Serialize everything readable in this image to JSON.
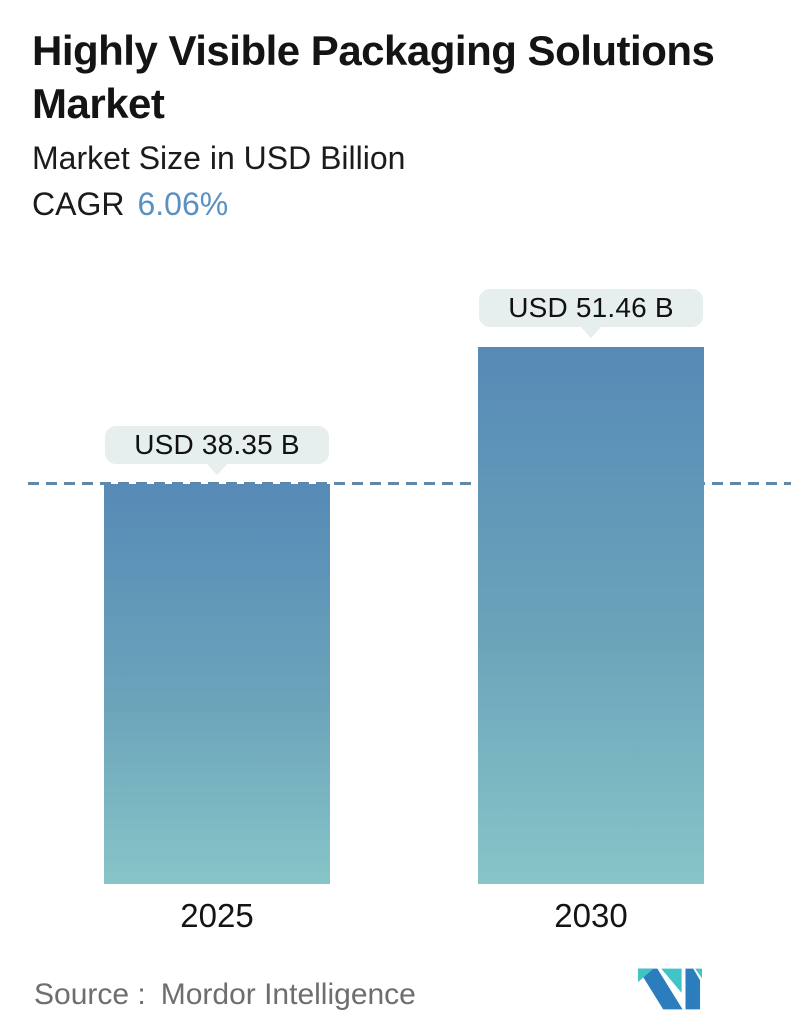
{
  "header": {
    "title_lines": [
      "Highly Visible Packaging Solutions",
      "Market"
    ],
    "subtitle": "Market Size in USD Billion",
    "cagr_label": "CAGR",
    "cagr_value": "6.06%"
  },
  "chart_data": {
    "type": "bar",
    "title": "Highly Visible Packaging Solutions Market",
    "subtitle": "Market Size in USD Billion",
    "unit": "USD Billion",
    "cagr_percent": 6.06,
    "categories": [
      "2025",
      "2030"
    ],
    "values": [
      38.35,
      51.46
    ],
    "bar_labels": [
      "USD 38.35 B",
      "USD 51.46 B"
    ],
    "baseline_reference": 38.35,
    "baseline_style": "dashed",
    "legend": "none",
    "grid": "off",
    "colors": {
      "bar_gradient_top": "#578ab6",
      "bar_gradient_bottom": "#87c5c8",
      "dashed_line": "#5f87a8",
      "label_pill_bg": "#e6eeee",
      "cagr_accent": "#5b90c2",
      "source_text": "#6e6e6e",
      "logo_teal": "#41c4c6",
      "logo_blue": "#2b7dbe"
    }
  },
  "footer": {
    "source_label": "Source :",
    "source_value": "Mordor Intelligence"
  }
}
